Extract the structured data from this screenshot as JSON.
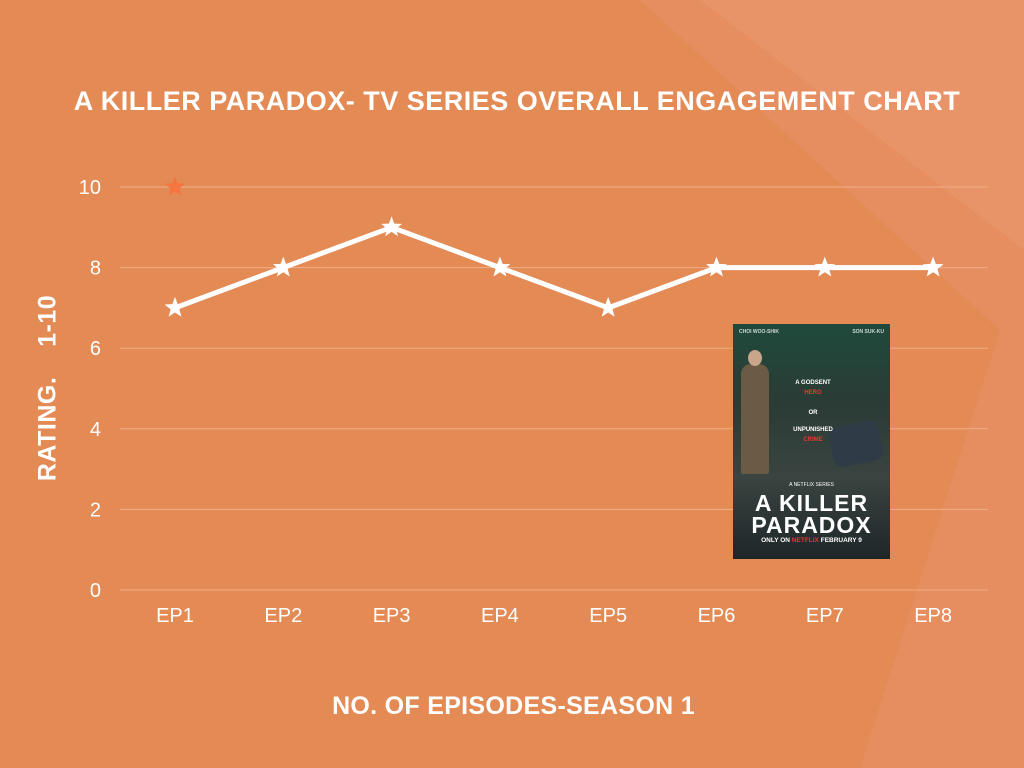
{
  "chart_data": {
    "type": "line",
    "title": "A KILLER PARADOX- TV SERIES OVERALL ENGAGEMENT CHART",
    "xlabel": "NO. OF EPISODES-SEASON 1",
    "ylabel": "RATING.    1-10",
    "categories": [
      "EP1",
      "EP2",
      "EP3",
      "EP4",
      "EP5",
      "EP6",
      "EP7",
      "EP8"
    ],
    "series": [
      {
        "values": [
          7,
          8,
          9,
          8,
          7,
          8,
          8,
          8
        ]
      }
    ],
    "extra_marker": {
      "category": "EP1",
      "value": 10
    },
    "yticks": [
      "0",
      "2",
      "4",
      "6",
      "8",
      "10"
    ],
    "ylim": [
      0,
      10
    ],
    "grid": true,
    "colors": {
      "background": "#e38a55",
      "line": "#ffffff",
      "marker": "#ffffff",
      "highlight_marker": "#f5743f",
      "grid": "#f0ad88"
    }
  },
  "poster": {
    "cast_left": "CHOI WOO-SHIK",
    "cast_right": "SON SUK-KU",
    "tagline": [
      "A GODSENT",
      "HERO",
      "OR",
      "UNPUNISHED",
      "CRIME"
    ],
    "series_label": "A NETFLIX SERIES",
    "logo_line1": "A KILLER",
    "logo_line2": "PARADOX",
    "only_on": "ONLY ON",
    "brand": "NETFLIX",
    "release": "FEBRUARY 9"
  }
}
